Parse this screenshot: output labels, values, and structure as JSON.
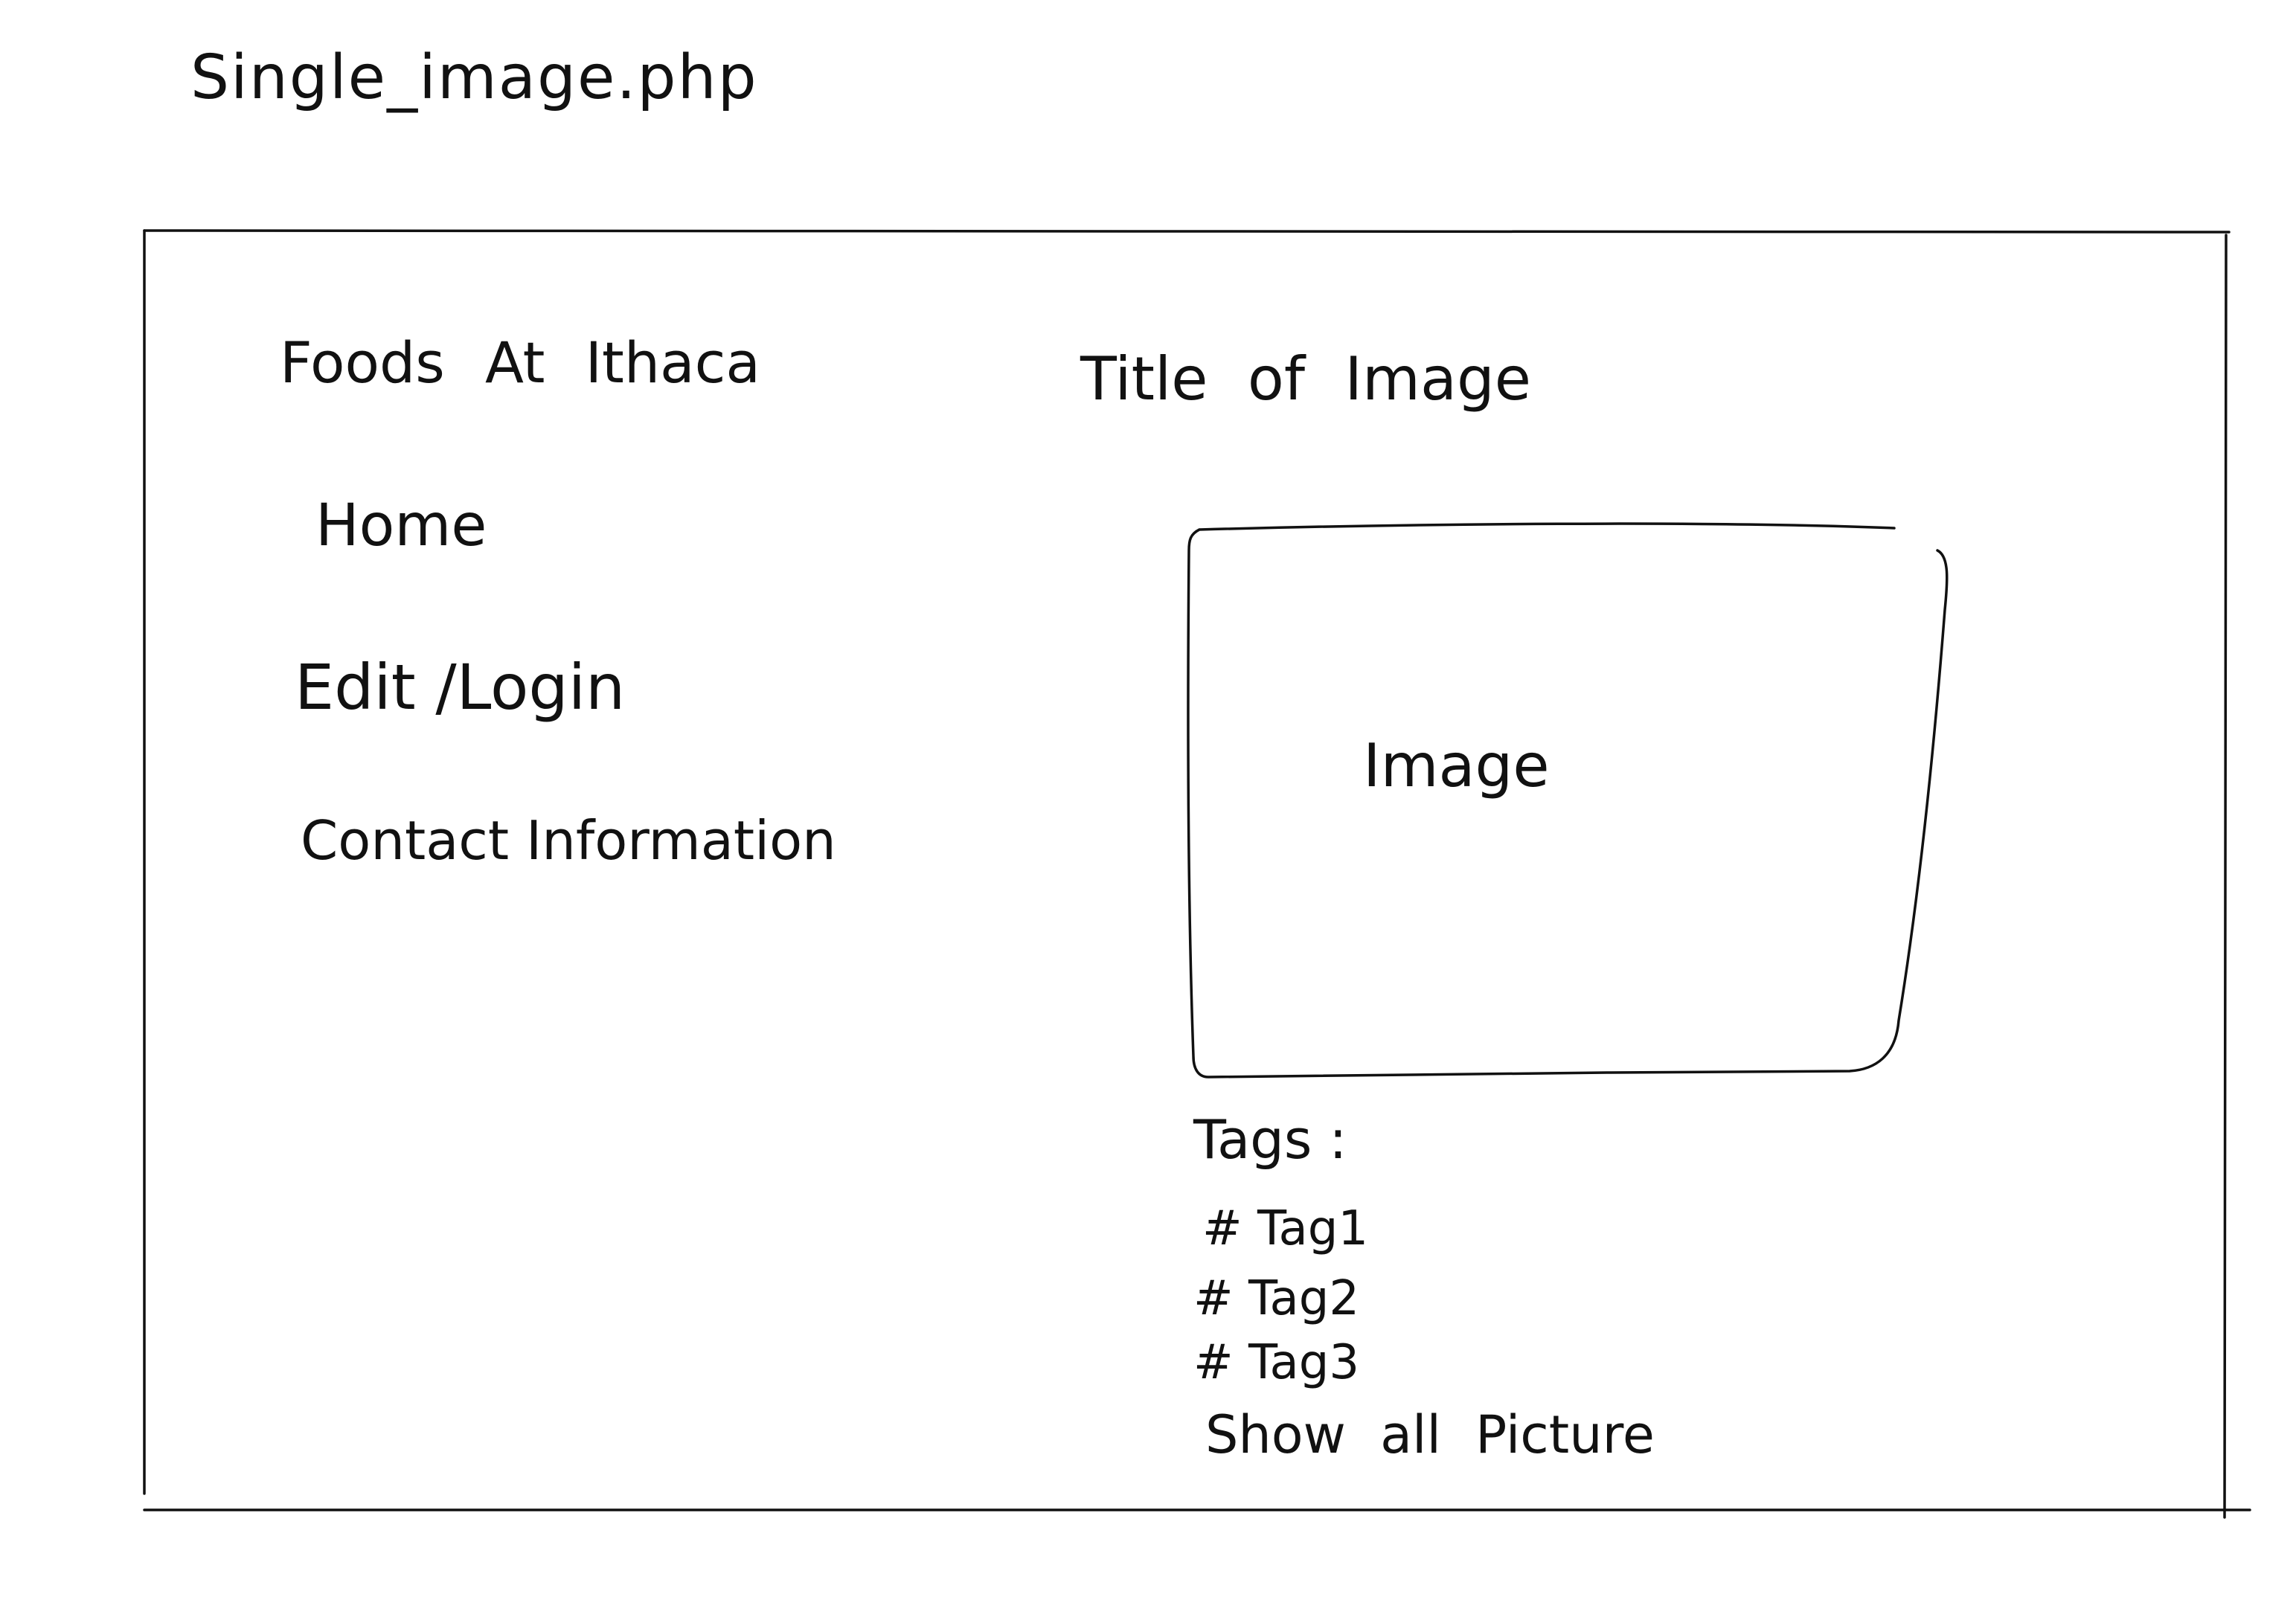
{
  "sketch": {
    "filename": "Single_image.php",
    "stroke_color": "#111111",
    "background": "#ffffff"
  },
  "sidebar": {
    "site_title": "Foods At Ithaca",
    "nav": {
      "home": "Home",
      "edit_login": "Edit /Login",
      "contact": "Contact Information"
    }
  },
  "main": {
    "image_title": "Title of Image",
    "image_placeholder": "Image",
    "tags_label": "Tags :",
    "tags": [
      "# Tag1",
      "# Tag2",
      "# Tag3"
    ],
    "show_all_link": "Show all Picture"
  }
}
